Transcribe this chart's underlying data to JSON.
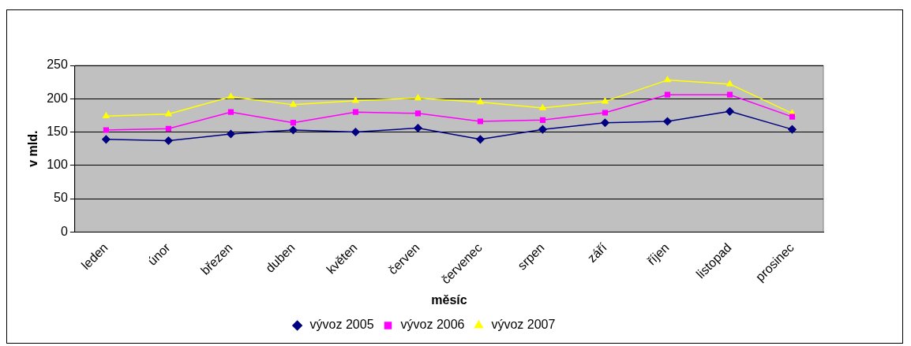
{
  "chart_data": {
    "type": "line",
    "xlabel": "měsíc",
    "ylabel": "v mld.",
    "categories": [
      "leden",
      "únor",
      "březen",
      "duben",
      "květen",
      "červen",
      "červenec",
      "srpen",
      "září",
      "říjen",
      "listopad",
      "prosinec"
    ],
    "series": [
      {
        "name": "vývoz 2005",
        "color": "#000080",
        "marker": "diamond",
        "values": [
          139,
          137,
          147,
          153,
          150,
          156,
          139,
          154,
          164,
          166,
          181,
          154
        ]
      },
      {
        "name": "vývoz 2006",
        "color": "#ff00ff",
        "marker": "square",
        "values": [
          153,
          155,
          180,
          164,
          180,
          178,
          166,
          168,
          179,
          206,
          206,
          173
        ]
      },
      {
        "name": "vývoz 2007",
        "color": "#ffff00",
        "marker": "triangle",
        "values": [
          174,
          177,
          203,
          191,
          197,
          201,
          195,
          186,
          196,
          228,
          222,
          178
        ]
      }
    ],
    "ylim": [
      0,
      250
    ],
    "yticks": [
      0,
      50,
      100,
      150,
      200,
      250
    ],
    "grid": "y",
    "legend": "bottom"
  }
}
